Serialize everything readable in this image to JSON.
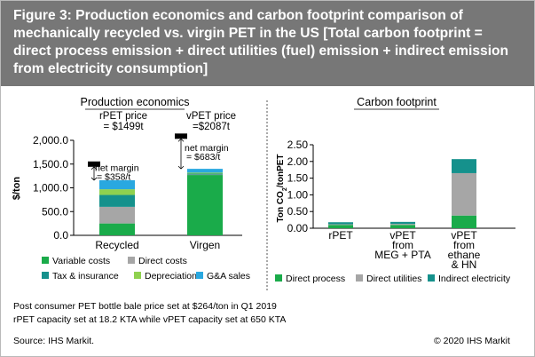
{
  "figure": {
    "title": "Figure 3:  Production economics and carbon footprint comparison of mechanically recycled vs. virgin PET in the US [Total carbon footprint = direct process emission + direct utilities (fuel) emission + indirect emission from electricity consumption]",
    "footnote_1": "Post consumer PET bottle bale price set at $264/ton in Q1 2019",
    "footnote_2": "rPET capacity set at 18.2 KTA while vPET capacity set at 650 KTA",
    "source": "Source: IHS Markit.",
    "copyright": "© 2020 IHS Markit"
  },
  "colors": {
    "variable_costs": "#1aab4a",
    "direct_costs": "#a6a6a6",
    "tax_insurance": "#15918c",
    "depreciation": "#8fd14f",
    "ga_sales": "#29a8e0",
    "title_bg": "#777777"
  },
  "chart_data": [
    {
      "type": "bar",
      "title": "Production economics",
      "ylabel": "$/ton",
      "ylim": [
        0,
        2000
      ],
      "yticks": [
        "0.0",
        "500.0",
        "1,000.0",
        "1,500.0",
        "2,000.0"
      ],
      "categories": [
        "Recycled",
        "Virgen"
      ],
      "stacked": true,
      "series": [
        {
          "name": "Variable costs",
          "values": [
            250,
            1270
          ]
        },
        {
          "name": "Direct costs",
          "values": [
            350,
            10
          ]
        },
        {
          "name": "Tax & insurance",
          "values": [
            250,
            20
          ]
        },
        {
          "name": "Depreciation",
          "values": [
            120,
            20
          ]
        },
        {
          "name": "G&A sales",
          "values": [
            190,
            80
          ]
        }
      ],
      "prices": [
        {
          "label_1": "rPET price",
          "label_2": "= $1499t",
          "value": 1499
        },
        {
          "label_1": "vPET price",
          "label_2": "=$2087t",
          "value": 2087
        }
      ],
      "margins": [
        {
          "label_1": "net margin",
          "label_2": "= $358/t"
        },
        {
          "label_1": "net margin",
          "label_2": "= $683/t"
        }
      ],
      "legend_position": "bottom"
    },
    {
      "type": "bar",
      "title": "Carbon footprint",
      "ylabel": "Ton CO2/tonPET",
      "ylim": [
        0,
        2.5
      ],
      "yticks": [
        "0.00",
        "0.50",
        "1.00",
        "1.50",
        "2.00",
        "2.50"
      ],
      "categories": [
        [
          "rPET"
        ],
        [
          "vPET",
          "from",
          "MEG + PTA"
        ],
        [
          "vPET",
          "from",
          "ethane",
          "& HN"
        ]
      ],
      "stacked": true,
      "series": [
        {
          "name": "Direct process",
          "values": [
            0.1,
            0.1,
            0.38
          ]
        },
        {
          "name": "Direct utilities",
          "values": [
            0.02,
            0.03,
            1.27
          ]
        },
        {
          "name": "Indirect electricity",
          "values": [
            0.06,
            0.06,
            0.42
          ]
        }
      ],
      "legend_position": "bottom"
    }
  ]
}
